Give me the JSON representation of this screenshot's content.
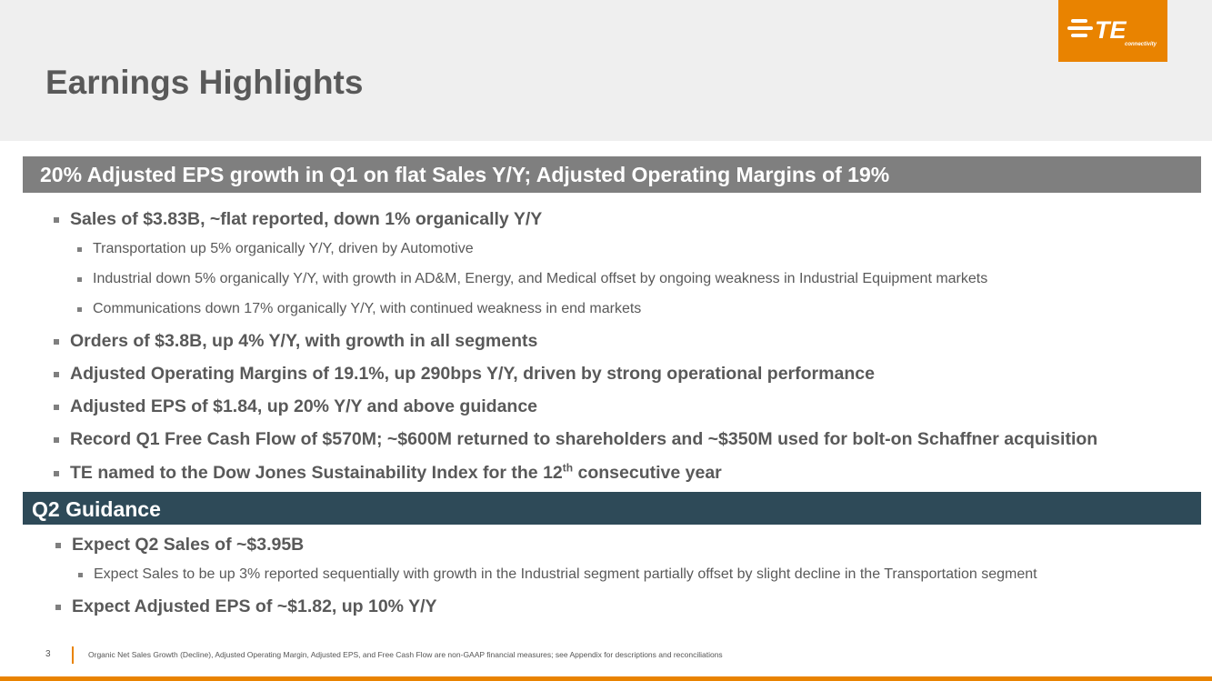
{
  "title": "Earnings Highlights",
  "logo": {
    "text": "TE",
    "subtext": "connectivity",
    "brand_color": "#e98300"
  },
  "highlights": {
    "heading": "20% Adjusted EPS growth in Q1 on flat Sales Y/Y; Adjusted Operating Margins of 19%",
    "sales": "Sales of $3.83B, ~flat reported, down 1% organically Y/Y",
    "sales_details": [
      "Transportation up 5% organically Y/Y, driven by Automotive",
      "Industrial down 5% organically Y/Y, with growth in AD&M, Energy, and Medical offset by ongoing weakness in Industrial Equipment markets",
      "Communications down 17% organically Y/Y, with continued weakness in end markets"
    ],
    "orders": "Orders of $3.8B, up 4% Y/Y, with growth in all segments",
    "margins": "Adjusted Operating Margins of 19.1%, up 290bps Y/Y, driven by strong operational performance",
    "eps": "Adjusted EPS of $1.84, up 20% Y/Y and above guidance",
    "cash_flow": "Record Q1 Free Cash Flow of $570M; ~$600M returned to shareholders and ~$350M used for bolt-on Schaffner acquisition",
    "djsi": {
      "before": "TE named to the Dow Jones Sustainability Index for the 12",
      "sup": "th",
      "after": " consecutive year"
    }
  },
  "guidance": {
    "heading": "Q2 Guidance",
    "sales": "Expect Q2 Sales of ~$3.95B",
    "sales_detail": "Expect Sales to be up 3% reported sequentially with growth in the Industrial segment partially offset by slight decline in the Transportation segment",
    "eps": "Expect Adjusted EPS of ~$1.82, up 10% Y/Y"
  },
  "footer": {
    "page_number": "3",
    "note": "Organic Net Sales Growth (Decline), Adjusted Operating Margin, Adjusted EPS, and Free Cash Flow are non-GAAP financial measures; see Appendix for descriptions and reconciliations"
  },
  "colors": {
    "banner_gray": "#7f7f7f",
    "banner_navy": "#2e4a58",
    "header_bg": "#efefef"
  }
}
